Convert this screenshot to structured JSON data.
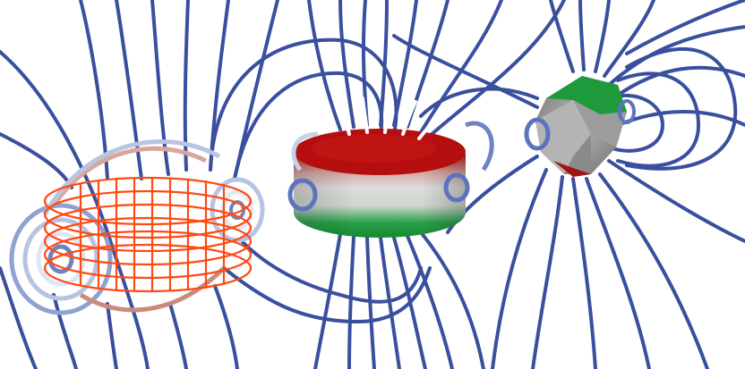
{
  "scene": {
    "objects": [
      {
        "name": "current-loop-coil",
        "kind": "coil"
      },
      {
        "name": "cylindrical-magnet",
        "kind": "cylinder"
      },
      {
        "name": "polyhedral-magnet",
        "kind": "polyhedron"
      }
    ],
    "colors": {
      "field_line_far": "#3a4f9e",
      "field_line_near": "#e8ecf6",
      "coil_wire": "#ff4a14",
      "north_pole": "#c01414",
      "south_pole": "#1e9a3c",
      "magnet_body": "#c8c8c8",
      "background": "#ffffff"
    }
  }
}
